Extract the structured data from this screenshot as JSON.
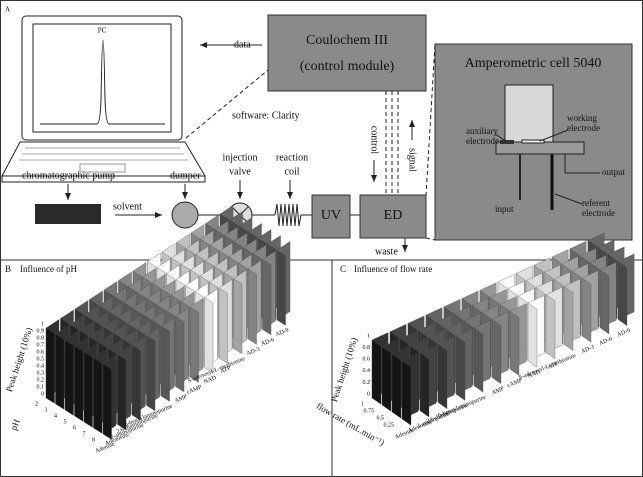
{
  "panel_a": {
    "letter": "A",
    "pc": "PC",
    "data": "data",
    "module_name": "Coulochem III",
    "module_sub": "(control module)",
    "software": "software: Clarity",
    "cell_title": "Amperometric cell 5040",
    "auxiliary_1": "auxiliary",
    "auxiliary_2": "electrode",
    "working_1": "working",
    "working_2": "electrode",
    "output": "output",
    "input": "input",
    "referent_1": "referent",
    "referent_2": "electrode",
    "control": "control",
    "signal": "signal",
    "pump": "chromatographic pump",
    "dumper": "dumper",
    "valve_1": "injection",
    "valve_2": "valve",
    "coil_1": "reaction",
    "coil_2": "coil",
    "solvent": "solvent",
    "uv": "UV",
    "ed": "ED",
    "waste": "waste"
  },
  "panel_b": {
    "letter": "B",
    "title": "Influence of pH",
    "y_label": "Peak height (10%)",
    "depth_label": "pH",
    "yticks": [
      "0",
      "0.1",
      "0.2",
      "0.3",
      "0.4",
      "0.5",
      "0.6",
      "0.7",
      "0.8",
      "0.9",
      "1"
    ],
    "depth_ticks": [
      "2",
      "3",
      "4",
      "5",
      "6",
      "7",
      "8"
    ],
    "categories": [
      "Adenine",
      "Adenosine",
      "2-aminopurine",
      "2,6-diaminopurine",
      "6-benzylaminopurine",
      "AMP",
      "cAMP",
      "NAD",
      "ATP",
      "S-adenosyl-L-methionine",
      "AD-3",
      "AD-6",
      "AD-9"
    ]
  },
  "panel_c": {
    "letter": "C",
    "title": "Influence of flow rate",
    "y_label": "Peak height (10%)",
    "depth_label": "flow rate (mL.min⁻¹)",
    "yticks": [
      "0",
      "0.2",
      "0.4",
      "0.6",
      "0.8",
      "1"
    ],
    "depth_ticks": [
      "1",
      "0.75",
      "0.5",
      "0.25"
    ],
    "categories": [
      "Adenine",
      "Adenosine",
      "2-aminopurine",
      "2,6-diaminopurine",
      "6-benzylaminopurine",
      "AMP",
      "cAMP",
      "NAD",
      "ATP",
      "S-adenosyl-L-methionine",
      "AD-3",
      "AD-6",
      "AD-9"
    ]
  }
}
